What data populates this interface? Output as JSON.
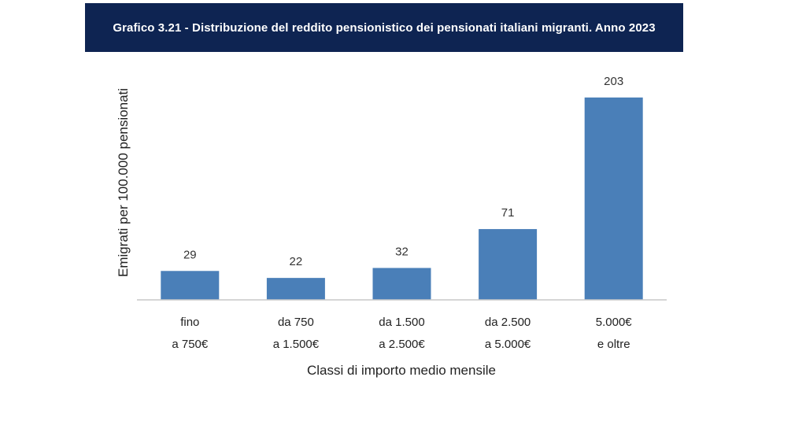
{
  "header": {
    "title": "Grafico 3.21 - Distribuzione del reddito pensionistico dei pensionati italiani migranti. Anno 2023"
  },
  "colors": {
    "header_bg": "#0e2452",
    "bar": "#4a7fb8",
    "axis": "#c8c8c8"
  },
  "chart_data": {
    "type": "bar",
    "title": "Grafico 3.21 - Distribuzione del reddito pensionistico dei pensionati italiani migranti. Anno 2023",
    "categories": [
      [
        "fino",
        "a 750€"
      ],
      [
        "da 750",
        "a 1.500€"
      ],
      [
        "da 1.500",
        "a 2.500€"
      ],
      [
        "da 2.500",
        "a 5.000€"
      ],
      [
        "5.000€",
        "e oltre"
      ]
    ],
    "values": [
      29,
      22,
      32,
      71,
      203
    ],
    "xlabel": "Classi di importo medio mensile",
    "ylabel": "Emigrati per 100.000 pensionati",
    "ylim": [
      0,
      210
    ],
    "grid": false,
    "data_labels": true
  }
}
